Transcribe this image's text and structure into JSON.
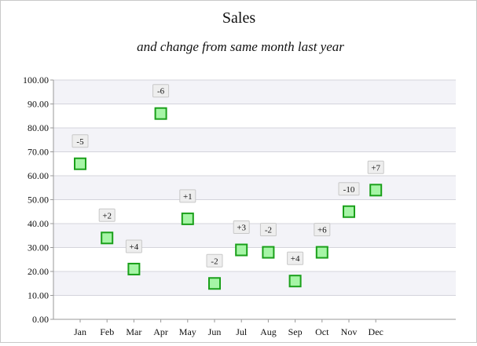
{
  "chart_data": {
    "type": "scatter",
    "title": "Sales",
    "subtitle": "and change from same month last year",
    "xlabel": "",
    "ylabel": "",
    "categories": [
      "Jan",
      "Feb",
      "Mar",
      "Apr",
      "May",
      "Jun",
      "Jul",
      "Aug",
      "Sep",
      "Oct",
      "Nov",
      "Dec"
    ],
    "values": [
      65,
      34,
      21,
      86,
      42,
      15,
      29,
      28,
      16,
      28,
      45,
      54
    ],
    "data_labels": [
      "-5",
      "+2",
      "+4",
      "-6",
      "+1",
      "-2",
      "+3",
      "-2",
      "+4",
      "+6",
      "-10",
      "+7"
    ],
    "ylim": [
      0,
      100
    ],
    "yticks": [
      "0.00",
      "10.00",
      "20.00",
      "30.00",
      "40.00",
      "50.00",
      "60.00",
      "70.00",
      "80.00",
      "90.00",
      "100.00"
    ],
    "grid": true,
    "legend": "none",
    "colors": {
      "marker_fill": "#a6f5a6",
      "marker_stroke": "#1aa01a",
      "band_alt": "#f3f3f8",
      "grid": "#d4d4dc",
      "axis": "#999999",
      "label_bg": "#eeeeee",
      "label_border": "#c8c8c8"
    }
  }
}
